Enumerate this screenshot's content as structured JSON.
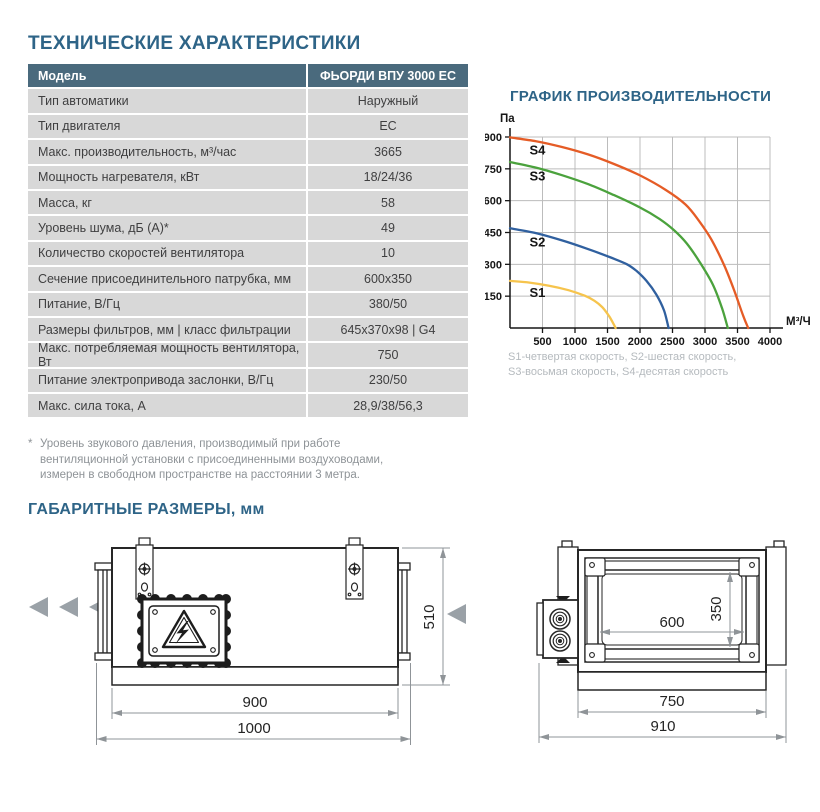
{
  "page": {
    "spec_title": "ТЕХНИЧЕСКИЕ ХАРАКТЕРИСТИКИ",
    "dims_title": "ГАБАРИТНЫЕ РАЗМЕРЫ, мм"
  },
  "table": {
    "header": {
      "label": "Модель",
      "value": "ФЬОРДИ ВПУ 3000 EC"
    },
    "rows": [
      {
        "label": "Тип автоматики",
        "value": "Наружный"
      },
      {
        "label": "Тип двигателя",
        "value": "EC"
      },
      {
        "label": "Макс. производительность, м³/час",
        "value": "3665"
      },
      {
        "label": "Мощность нагревателя, кВт",
        "value": "18/24/36"
      },
      {
        "label": "Масса, кг",
        "value": "58"
      },
      {
        "label": "Уровень шума, дБ (А)*",
        "value": "49"
      },
      {
        "label": "Количество скоростей вентилятора",
        "value": "10"
      },
      {
        "label": "Сечение присоединительного патрубка, мм",
        "value": "600х350"
      },
      {
        "label": "Питание, В/Гц",
        "value": "380/50"
      },
      {
        "label": "Размеры фильтров, мм  |  класс фильтрации",
        "value": "645х370х98  |  G4"
      },
      {
        "label": "Макс. потребляемая мощность вентилятора, Вт",
        "value": "750"
      },
      {
        "label": "Питание электропривода заслонки, В/Гц",
        "value": "230/50"
      },
      {
        "label": "Макс. сила тока, А",
        "value": "28,9/38/56,3"
      }
    ]
  },
  "footnote": {
    "marker": "*",
    "text": "Уровень звукового давления, производимый при работе вентиляционной установки с присоединенными воздуховодами, измерен в свободном пространстве на расстоянии 3 метра."
  },
  "chart": {
    "title": "ГРАФИК ПРОИЗВОДИТЕЛЬНОСТИ",
    "caption_lines": [
      "S1-четвертая скорость, S2-шестая скорость,",
      "S3-восьмая скорость, S4-десятая скорость"
    ]
  },
  "chart_data": {
    "type": "line",
    "title": "ГРАФИК ПРОИЗВОДИТЕЛЬНОСТИ",
    "xlabel": "М³/Ч",
    "ylabel": "Па",
    "xlim": [
      0,
      4000
    ],
    "ylim": [
      0,
      900
    ],
    "x_ticks": [
      500,
      1000,
      1500,
      2000,
      2500,
      3000,
      3500,
      4000
    ],
    "y_ticks": [
      150,
      300,
      450,
      600,
      750,
      900
    ],
    "grid": true,
    "legend_position": "labels-on-curves",
    "series": [
      {
        "name": "S1",
        "description": "четвертая скорость",
        "color": "#f6c44d",
        "points": [
          [
            0,
            222
          ],
          [
            300,
            214
          ],
          [
            600,
            199
          ],
          [
            900,
            178
          ],
          [
            1150,
            152
          ],
          [
            1300,
            128
          ],
          [
            1420,
            98
          ],
          [
            1520,
            58
          ],
          [
            1600,
            15
          ],
          [
            1625,
            0
          ]
        ]
      },
      {
        "name": "S2",
        "description": "шестая скорость",
        "color": "#30609f",
        "points": [
          [
            0,
            470
          ],
          [
            400,
            447
          ],
          [
            800,
            413
          ],
          [
            1200,
            372
          ],
          [
            1550,
            332
          ],
          [
            1800,
            300
          ],
          [
            1950,
            268
          ],
          [
            2100,
            222
          ],
          [
            2250,
            158
          ],
          [
            2370,
            82
          ],
          [
            2440,
            0
          ]
        ]
      },
      {
        "name": "S3",
        "description": "восьмая скорость",
        "color": "#4ba23d",
        "points": [
          [
            0,
            782
          ],
          [
            400,
            756
          ],
          [
            800,
            720
          ],
          [
            1200,
            678
          ],
          [
            1600,
            626
          ],
          [
            2000,
            568
          ],
          [
            2300,
            514
          ],
          [
            2520,
            462
          ],
          [
            2720,
            398
          ],
          [
            2920,
            310
          ],
          [
            3120,
            205
          ],
          [
            3260,
            95
          ],
          [
            3350,
            0
          ]
        ]
      },
      {
        "name": "S4",
        "description": "десятая скорость",
        "color": "#e55c26",
        "points": [
          [
            0,
            898
          ],
          [
            400,
            880
          ],
          [
            800,
            853
          ],
          [
            1200,
            818
          ],
          [
            1600,
            773
          ],
          [
            2000,
            719
          ],
          [
            2400,
            650
          ],
          [
            2700,
            582
          ],
          [
            2900,
            508
          ],
          [
            3100,
            416
          ],
          [
            3300,
            292
          ],
          [
            3460,
            168
          ],
          [
            3590,
            55
          ],
          [
            3665,
            0
          ]
        ]
      }
    ]
  },
  "drawings": {
    "front_view": {
      "dim_inner_width": "900",
      "dim_total_width": "1000",
      "dim_height": "510"
    },
    "side_view": {
      "dim_duct_width": "600",
      "dim_duct_height": "350",
      "dim_inner_width": "750",
      "dim_total_width": "910"
    }
  }
}
